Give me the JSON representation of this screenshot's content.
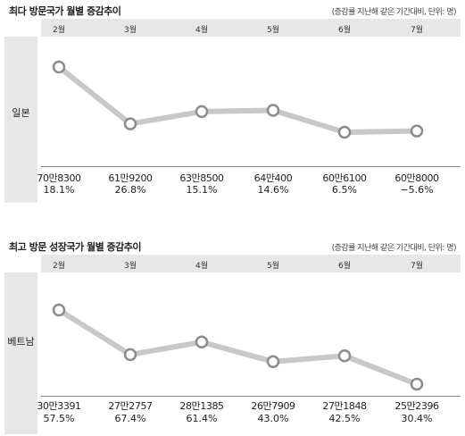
{
  "chart_data": [
    {
      "type": "line",
      "title": "최다 방문국가 월별 증감추이",
      "note": "(증감률 지난해 같은 기간대비, 단위: 명)",
      "series_label": "일본",
      "categories": [
        "2월",
        "3월",
        "4월",
        "5월",
        "6월",
        "7월"
      ],
      "values": [
        708300,
        619200,
        638500,
        640400,
        606100,
        608000
      ],
      "value_labels": [
        "70만8300",
        "61만9200",
        "63만8500",
        "64만400",
        "60만6100",
        "60만8000"
      ],
      "growth_labels": [
        "18.1%",
        "26.8%",
        "15.1%",
        "14.6%",
        "6.5%",
        "−5.6%"
      ],
      "line_color": "#c8c8c8",
      "marker_stroke": "#8c8c8c",
      "grid": false
    },
    {
      "type": "line",
      "title": "최고 방문 성장국가 월별 증감추이",
      "note": "(증감률 지난해 같은 기간대비, 단위: 명)",
      "series_label": "베트남",
      "categories": [
        "2월",
        "3월",
        "4월",
        "5월",
        "6월",
        "7월"
      ],
      "values": [
        303391,
        272757,
        281385,
        267909,
        271848,
        252396
      ],
      "value_labels": [
        "30만3391",
        "27만2757",
        "28만1385",
        "26만7909",
        "27만1848",
        "25만2396"
      ],
      "growth_labels": [
        "57.5%",
        "67.4%",
        "61.4%",
        "43.0%",
        "42.5%",
        "30.4%"
      ],
      "line_color": "#c8c8c8",
      "marker_stroke": "#8c8c8c",
      "grid": false
    }
  ]
}
